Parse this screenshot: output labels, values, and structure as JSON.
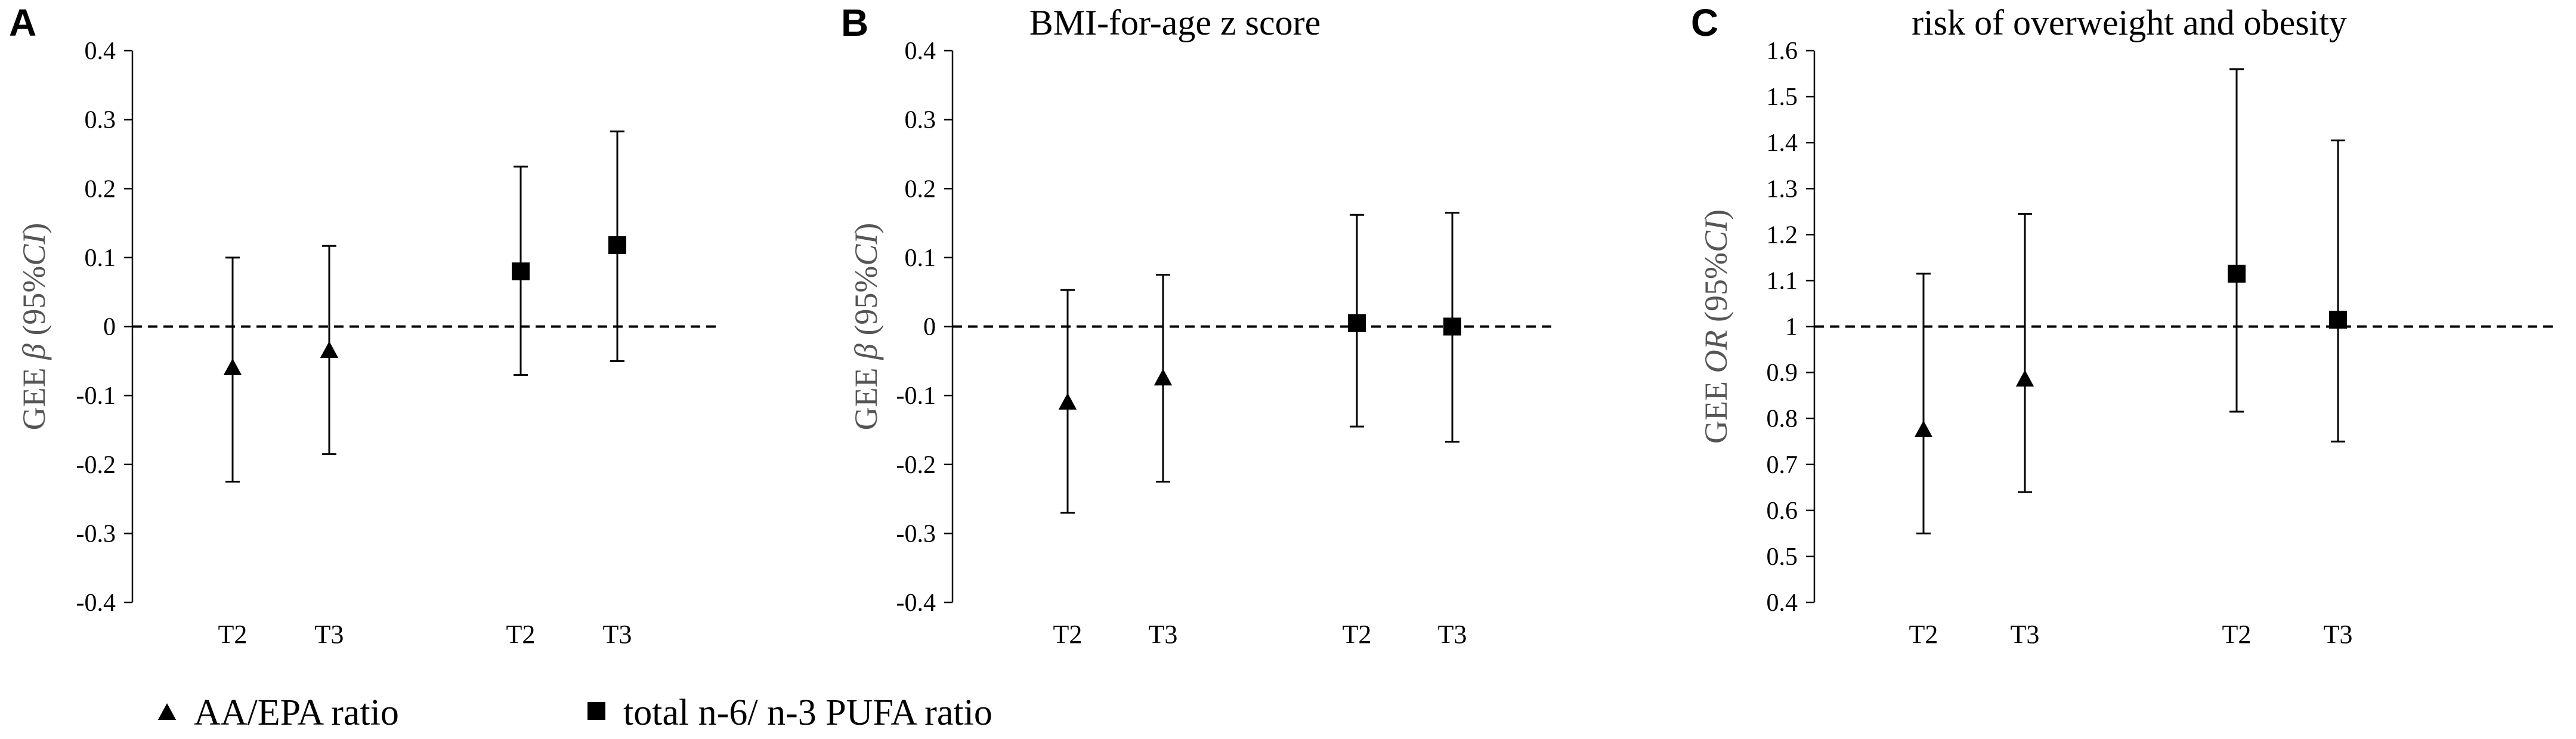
{
  "chart_data": [
    {
      "type": "scatter",
      "panel_label": "A",
      "title": "",
      "ylabel": {
        "prefix": "GEE ",
        "symbol": "β",
        "suffix": " (95%",
        "ci": "CI",
        "close": ")"
      },
      "ylim": [
        -0.4,
        0.4
      ],
      "yticks": [
        "0.4",
        "0.3",
        "0.2",
        "0.1",
        "0",
        "-0.1",
        "-0.2",
        "-0.3",
        "-0.4"
      ],
      "yticks_values": [
        0.4,
        0.3,
        0.2,
        0.1,
        0,
        -0.1,
        -0.2,
        -0.3,
        -0.4
      ],
      "reference_line": 0,
      "categories": [
        "T2",
        "T3",
        "T2",
        "T3"
      ],
      "points": [
        {
          "series": "AA/EPA ratio",
          "category": "T2",
          "value": -0.06,
          "lower": -0.225,
          "upper": 0.1
        },
        {
          "series": "AA/EPA ratio",
          "category": "T3",
          "value": -0.035,
          "lower": -0.185,
          "upper": 0.117
        },
        {
          "series": "total n-6/ n-3 PUFA ratio",
          "category": "T2",
          "value": 0.08,
          "lower": -0.07,
          "upper": 0.232
        },
        {
          "series": "total n-6/ n-3 PUFA ratio",
          "category": "T3",
          "value": 0.118,
          "lower": -0.05,
          "upper": 0.283
        }
      ]
    },
    {
      "type": "scatter",
      "panel_label": "B",
      "title": "BMI-for-age z score",
      "ylabel": {
        "prefix": "GEE ",
        "symbol": "β",
        "suffix": " (95%",
        "ci": "CI",
        "close": ")"
      },
      "ylim": [
        -0.4,
        0.4
      ],
      "yticks": [
        "0.4",
        "0.3",
        "0.2",
        "0.1",
        "0",
        "-0.1",
        "-0.2",
        "-0.3",
        "-0.4"
      ],
      "yticks_values": [
        0.4,
        0.3,
        0.2,
        0.1,
        0,
        -0.1,
        -0.2,
        -0.3,
        -0.4
      ],
      "reference_line": 0,
      "categories": [
        "T2",
        "T3",
        "T2",
        "T3"
      ],
      "points": [
        {
          "series": "AA/EPA ratio",
          "category": "T2",
          "value": -0.11,
          "lower": -0.27,
          "upper": 0.053
        },
        {
          "series": "AA/EPA ratio",
          "category": "T3",
          "value": -0.075,
          "lower": -0.225,
          "upper": 0.075
        },
        {
          "series": "total n-6/ n-3 PUFA ratio",
          "category": "T2",
          "value": 0.005,
          "lower": -0.145,
          "upper": 0.162
        },
        {
          "series": "total n-6/ n-3 PUFA ratio",
          "category": "T3",
          "value": 0.0,
          "lower": -0.167,
          "upper": 0.165
        }
      ]
    },
    {
      "type": "scatter",
      "panel_label": "C",
      "title": "risk of overweight and obesity",
      "ylabel": {
        "prefix": "GEE ",
        "symbol": "OR",
        "suffix": " (95%",
        "ci": "CI",
        "close": ")"
      },
      "ylim": [
        0.4,
        1.6
      ],
      "yticks": [
        "1.6",
        "1.5",
        "1.4",
        "1.3",
        "1.2",
        "1.1",
        "1",
        "0.9",
        "0.8",
        "0.7",
        "0.6",
        "0.5",
        "0.4"
      ],
      "yticks_values": [
        1.6,
        1.5,
        1.4,
        1.3,
        1.2,
        1.1,
        1.0,
        0.9,
        0.8,
        0.7,
        0.6,
        0.5,
        0.4
      ],
      "reference_line": 1,
      "categories": [
        "T2",
        "T3",
        "T2",
        "T3"
      ],
      "points": [
        {
          "series": "AA/EPA ratio",
          "category": "T2",
          "value": 0.775,
          "lower": 0.55,
          "upper": 1.115
        },
        {
          "series": "AA/EPA ratio",
          "category": "T3",
          "value": 0.885,
          "lower": 0.64,
          "upper": 1.245
        },
        {
          "series": "total n-6/ n-3 PUFA ratio",
          "category": "T2",
          "value": 1.115,
          "lower": 0.815,
          "upper": 1.56
        },
        {
          "series": "total n-6/ n-3 PUFA ratio",
          "category": "T3",
          "value": 1.015,
          "lower": 0.75,
          "upper": 1.405
        }
      ]
    }
  ],
  "legend": {
    "placement": "bottom-left",
    "items": [
      {
        "marker": "triangle",
        "label": "AA/EPA ratio"
      },
      {
        "marker": "square",
        "label": "total n-6/ n-3 PUFA ratio"
      }
    ]
  },
  "colors": {
    "marks": "#000000",
    "axis": "#000000",
    "ylabel": "#555555"
  }
}
